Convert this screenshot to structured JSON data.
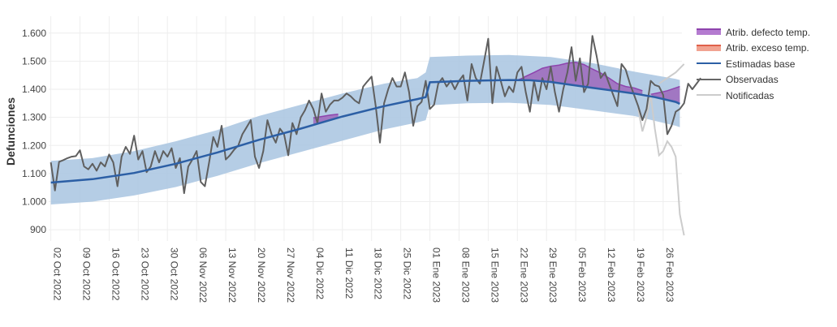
{
  "chart_data": {
    "type": "line",
    "ylabel": "Defunciones",
    "xlabel": "",
    "ylim": [
      860,
      1660
    ],
    "yticks": [
      900,
      1000,
      1100,
      1200,
      1300,
      1400,
      1500,
      1600
    ],
    "ytick_labels": [
      "900",
      "1.000",
      "1.100",
      "1.200",
      "1.300",
      "1.400",
      "1.500",
      "1.600"
    ],
    "x_range_days": [
      -0.5,
      151.5
    ],
    "x_start_date": "2022-10-02",
    "xticks": [
      {
        "day": 0,
        "label": "02 Oct 2022"
      },
      {
        "day": 7,
        "label": "09 Oct 2022"
      },
      {
        "day": 14,
        "label": "16 Oct 2022"
      },
      {
        "day": 21,
        "label": "23 Oct 2022"
      },
      {
        "day": 28,
        "label": "30 Oct 2022"
      },
      {
        "day": 35,
        "label": "06 Nov 2022"
      },
      {
        "day": 42,
        "label": "13 Nov 2022"
      },
      {
        "day": 49,
        "label": "20 Nov 2022"
      },
      {
        "day": 56,
        "label": "27 Nov 2022"
      },
      {
        "day": 63,
        "label": "04 Dic 2022"
      },
      {
        "day": 70,
        "label": "11 Dic 2022"
      },
      {
        "day": 77,
        "label": "18 Dic 2022"
      },
      {
        "day": 84,
        "label": "25 Dic 2022"
      },
      {
        "day": 91,
        "label": "01 Ene 2023"
      },
      {
        "day": 98,
        "label": "08 Ene 2023"
      },
      {
        "day": 105,
        "label": "15 Ene 2023"
      },
      {
        "day": 112,
        "label": "22 Ene 2023"
      },
      {
        "day": 119,
        "label": "29 Ene 2023"
      },
      {
        "day": 126,
        "label": "05 Feb 2023"
      },
      {
        "day": 133,
        "label": "12 Feb 2023"
      },
      {
        "day": 140,
        "label": "19 Feb 2023"
      },
      {
        "day": 147,
        "label": "26 Feb 2023"
      }
    ],
    "legend": [
      {
        "name": "Atrib. defecto temp.",
        "kind": "fill",
        "color": "#9b59b6"
      },
      {
        "name": "Atrib. exceso temp.",
        "kind": "fill",
        "color": "#e8735a"
      },
      {
        "name": "Estimadas base",
        "kind": "line",
        "color": "#2c5fa5"
      },
      {
        "name": "Observadas",
        "kind": "line",
        "color": "#666666"
      },
      {
        "name": "Notificadas",
        "kind": "line",
        "color": "#cccccc"
      }
    ],
    "colors": {
      "band": "#a8c4e0",
      "baseline": "#2c5fa5",
      "observed": "#5f5f5f",
      "notified": "#cccccc",
      "defect": "#9b59b6",
      "defect_edge": "#8e44ad",
      "grid": "#eeeeee"
    },
    "series": [
      {
        "name": "Estimadas base",
        "points": [
          [
            0,
            1068
          ],
          [
            10,
            1080
          ],
          [
            20,
            1102
          ],
          [
            30,
            1135
          ],
          [
            40,
            1175
          ],
          [
            50,
            1220
          ],
          [
            60,
            1260
          ],
          [
            70,
            1303
          ],
          [
            80,
            1340
          ],
          [
            88,
            1365
          ],
          [
            90,
            1372
          ],
          [
            91,
            1425
          ],
          [
            100,
            1430
          ],
          [
            110,
            1433
          ],
          [
            115,
            1432
          ],
          [
            120,
            1426
          ],
          [
            130,
            1405
          ],
          [
            140,
            1385
          ],
          [
            145,
            1372
          ],
          [
            150,
            1355
          ],
          [
            151,
            1348
          ]
        ]
      },
      {
        "name": "Intervalo superior",
        "points": [
          [
            0,
            1145
          ],
          [
            10,
            1155
          ],
          [
            20,
            1180
          ],
          [
            30,
            1215
          ],
          [
            40,
            1255
          ],
          [
            50,
            1305
          ],
          [
            60,
            1345
          ],
          [
            70,
            1385
          ],
          [
            80,
            1420
          ],
          [
            88,
            1440
          ],
          [
            90,
            1460
          ],
          [
            91,
            1515
          ],
          [
            100,
            1520
          ],
          [
            110,
            1522
          ],
          [
            120,
            1515
          ],
          [
            130,
            1493
          ],
          [
            140,
            1463
          ],
          [
            150,
            1437
          ],
          [
            151,
            1433
          ]
        ]
      },
      {
        "name": "Intervalo inferior",
        "points": [
          [
            0,
            990
          ],
          [
            10,
            1000
          ],
          [
            20,
            1022
          ],
          [
            30,
            1052
          ],
          [
            40,
            1092
          ],
          [
            50,
            1137
          ],
          [
            60,
            1177
          ],
          [
            70,
            1217
          ],
          [
            80,
            1257
          ],
          [
            88,
            1282
          ],
          [
            90,
            1290
          ],
          [
            91,
            1343
          ],
          [
            100,
            1350
          ],
          [
            110,
            1352
          ],
          [
            120,
            1344
          ],
          [
            130,
            1325
          ],
          [
            140,
            1305
          ],
          [
            150,
            1270
          ],
          [
            151,
            1265
          ]
        ]
      },
      {
        "name": "Atrib. defecto temp.",
        "points": [
          [
            112,
            1433
          ],
          [
            113,
            1438
          ],
          [
            114,
            1446
          ],
          [
            116,
            1460
          ],
          [
            118,
            1475
          ],
          [
            120,
            1482
          ],
          [
            122,
            1486
          ],
          [
            124,
            1493
          ],
          [
            126,
            1496
          ],
          [
            128,
            1488
          ],
          [
            130,
            1472
          ],
          [
            132,
            1458
          ],
          [
            134,
            1440
          ],
          [
            136,
            1420
          ],
          [
            138,
            1410
          ],
          [
            140,
            1405
          ],
          [
            142,
            1395
          ]
        ]
      },
      {
        "name": "Atrib. defecto temp. (dic)",
        "points": [
          [
            63,
            1298
          ],
          [
            65,
            1303
          ],
          [
            67,
            1308
          ],
          [
            69,
            1311
          ]
        ]
      },
      {
        "name": "Atrib. defecto temp. (feb)",
        "points": [
          [
            144,
            1382
          ],
          [
            146,
            1388
          ],
          [
            148,
            1395
          ],
          [
            150,
            1405
          ],
          [
            151,
            1410
          ]
        ]
      },
      {
        "name": "Observadas",
        "values": [
          1140,
          1040,
          1142,
          1148,
          1155,
          1160,
          1162,
          1183,
          1125,
          1115,
          1135,
          1110,
          1140,
          1125,
          1168,
          1140,
          1055,
          1160,
          1195,
          1170,
          1235,
          1150,
          1180,
          1105,
          1125,
          1180,
          1140,
          1180,
          1160,
          1190,
          1120,
          1155,
          1030,
          1125,
          1150,
          1180,
          1070,
          1055,
          1140,
          1230,
          1195,
          1270,
          1150,
          1165,
          1185,
          1200,
          1240,
          1265,
          1290,
          1160,
          1120,
          1180,
          1290,
          1240,
          1210,
          1260,
          1240,
          1165,
          1280,
          1240,
          1300,
          1325,
          1360,
          1330,
          1280,
          1385,
          1320,
          1345,
          1360,
          1360,
          1370,
          1385,
          1375,
          1360,
          1350,
          1410,
          1428,
          1445,
          1340,
          1210,
          1350,
          1400,
          1440,
          1410,
          1410,
          1460,
          1390,
          1270,
          1340,
          1355,
          1430,
          1330,
          1345,
          1420,
          1440,
          1410,
          1430,
          1400,
          1430,
          1450,
          1360,
          1490,
          1440,
          1420,
          1500,
          1580,
          1350,
          1480,
          1430,
          1375,
          1410,
          1390,
          1460,
          1480,
          1390,
          1320,
          1430,
          1360,
          1440,
          1400,
          1480,
          1390,
          1320,
          1400,
          1460,
          1550,
          1430,
          1510,
          1390,
          1420,
          1590,
          1520,
          1440,
          1460,
          1420,
          1380,
          1340,
          1490,
          1470,
          1420,
          1380,
          1340,
          1290,
          1330,
          1430,
          1415,
          1410,
          1380,
          1240,
          1270,
          1320,
          1330,
          1350,
          1420,
          1400,
          1420,
          1440
        ]
      },
      {
        "name": "Notificadas",
        "points": [
          [
            141,
            1330
          ],
          [
            142,
            1250
          ],
          [
            143,
            1300
          ],
          [
            144,
            1380
          ],
          [
            145,
            1260
          ],
          [
            146,
            1165
          ],
          [
            147,
            1180
          ],
          [
            148,
            1215
          ],
          [
            149,
            1195
          ],
          [
            150,
            1160
          ],
          [
            151,
            955
          ],
          [
            152,
            880
          ]
        ]
      },
      {
        "name": "Notificadas (sup)",
        "points": [
          [
            146,
            1420
          ],
          [
            148,
            1440
          ],
          [
            150,
            1460
          ],
          [
            152,
            1490
          ]
        ]
      }
    ]
  }
}
